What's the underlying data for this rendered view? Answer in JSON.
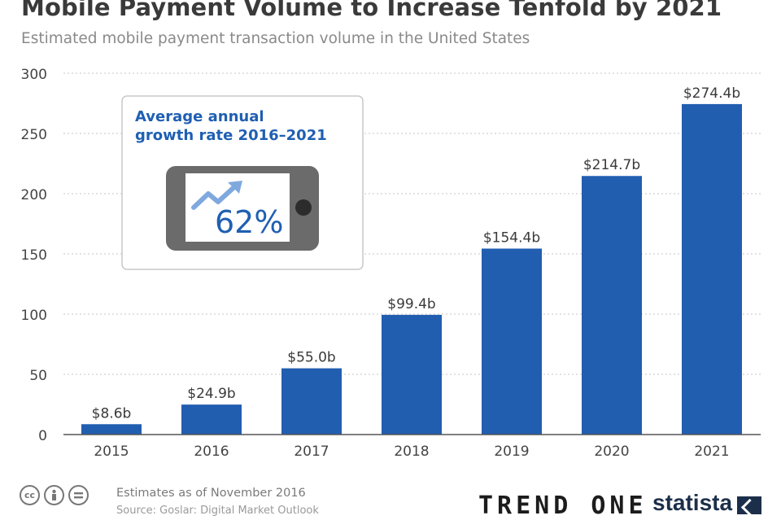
{
  "header": {
    "title": "Mobile Payment Volume to Increase Tenfold by 2021",
    "subtitle": "Estimated mobile payment transaction volume in the United States"
  },
  "callout": {
    "line1": "Average annual",
    "line2": "growth rate 2016–2021",
    "value": "62%"
  },
  "footer": {
    "note": "Estimates as of November 2016",
    "source": "Source: Goslar: Digital Market Outlook",
    "license_icons": [
      "cc-icon",
      "attribution-icon",
      "no-derivatives-icon"
    ],
    "logos": [
      "TREND ONE",
      "statista"
    ]
  },
  "colors": {
    "bar": "#215eb0",
    "title": "#3a3a3a",
    "subtitle": "#8a8a8a",
    "callout_text": "#1f5fb2",
    "phone": "#6b6b6b",
    "arrow": "#7fa8de"
  },
  "chart_data": {
    "type": "bar",
    "categories": [
      "2015",
      "2016",
      "2017",
      "2018",
      "2019",
      "2020",
      "2021"
    ],
    "values": [
      8.6,
      24.9,
      55.0,
      99.4,
      154.4,
      214.7,
      274.4
    ],
    "data_labels": [
      "$8.6b",
      "$24.9b",
      "$55.0b",
      "$99.4b",
      "$154.4b",
      "$214.7b",
      "$274.4b"
    ],
    "yticks": [
      0,
      50,
      100,
      150,
      200,
      250,
      300
    ],
    "ylim": [
      0,
      300
    ],
    "grid": true,
    "title": "Mobile Payment Volume to Increase Tenfold by 2021",
    "subtitle": "Estimated mobile payment transaction volume in the United States"
  }
}
